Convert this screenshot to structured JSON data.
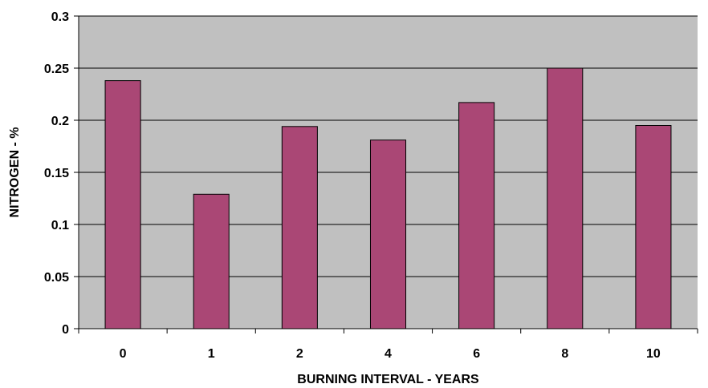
{
  "chart_data": {
    "type": "bar",
    "title": "",
    "xlabel": "BURNING INTERVAL - YEARS",
    "ylabel": "NITROGEN - %",
    "categories": [
      "0",
      "1",
      "2",
      "4",
      "6",
      "8",
      "10"
    ],
    "values": [
      0.238,
      0.129,
      0.194,
      0.181,
      0.217,
      0.25,
      0.195
    ],
    "ylim": [
      0,
      0.3
    ],
    "yticks": [
      0,
      0.05,
      0.1,
      0.15,
      0.2,
      0.25,
      0.3
    ],
    "ytick_labels": [
      "0",
      "0.05",
      "0.1",
      "0.15",
      "0.2",
      "0.25",
      "0.3"
    ],
    "grid": true,
    "legend": "none",
    "colors": {
      "bar_fill": "#AA4775",
      "bar_stroke": "#000000",
      "plot_background": "#C0C0C0",
      "gridline": "#000000",
      "axis": "#000000"
    }
  }
}
